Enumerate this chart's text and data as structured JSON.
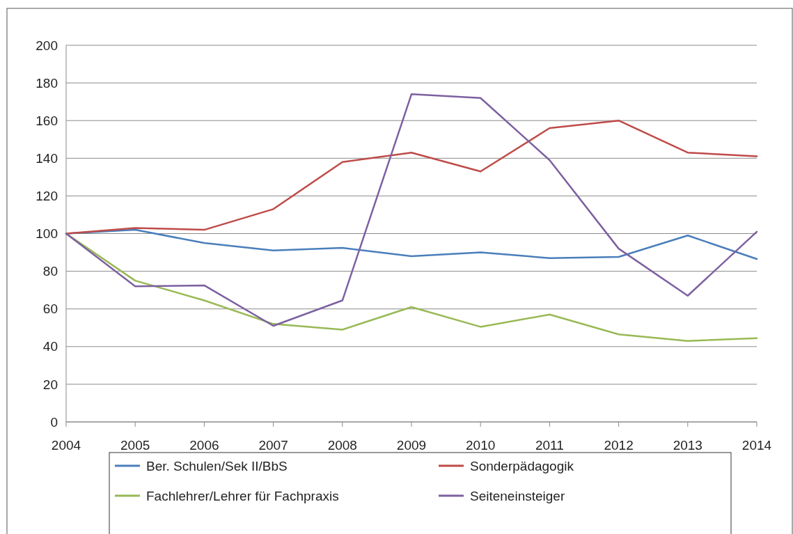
{
  "chart_data": {
    "type": "line",
    "x": [
      2004,
      2005,
      2006,
      2007,
      2008,
      2009,
      2010,
      2011,
      2012,
      2013,
      2014
    ],
    "xlim": [
      2004,
      2014
    ],
    "xticks": [
      2004,
      2005,
      2006,
      2007,
      2008,
      2009,
      2010,
      2011,
      2012,
      2013,
      2014
    ],
    "ylim": [
      0,
      200
    ],
    "yticks": [
      0,
      20,
      40,
      60,
      80,
      100,
      120,
      140,
      160,
      180,
      200
    ],
    "grid": "y",
    "legend": "bottom",
    "marker": "none",
    "line_style": "solid",
    "series": [
      {
        "name": "Ber. Schulen/Sek II/BbS",
        "color": "#4a7ebb",
        "values": [
          100,
          102,
          95,
          91,
          92.4,
          88,
          90,
          87,
          87.6,
          99,
          86.5
        ]
      },
      {
        "name": "Sonderpädagogik",
        "color": "#be4b48",
        "values": [
          100,
          103,
          102,
          113,
          138,
          143,
          133,
          156,
          160,
          143,
          141
        ]
      },
      {
        "name": "Fachlehrer/Lehrer für Fachpraxis",
        "color": "#98b954",
        "values": [
          100,
          75,
          64.5,
          52,
          49,
          61,
          50.5,
          57,
          46.5,
          43,
          44.5
        ]
      },
      {
        "name": "Seiteneinsteiger",
        "color": "#7d60a0",
        "values": [
          100,
          72,
          72.5,
          51,
          64.5,
          174,
          172,
          139,
          92,
          67,
          101
        ]
      }
    ]
  }
}
